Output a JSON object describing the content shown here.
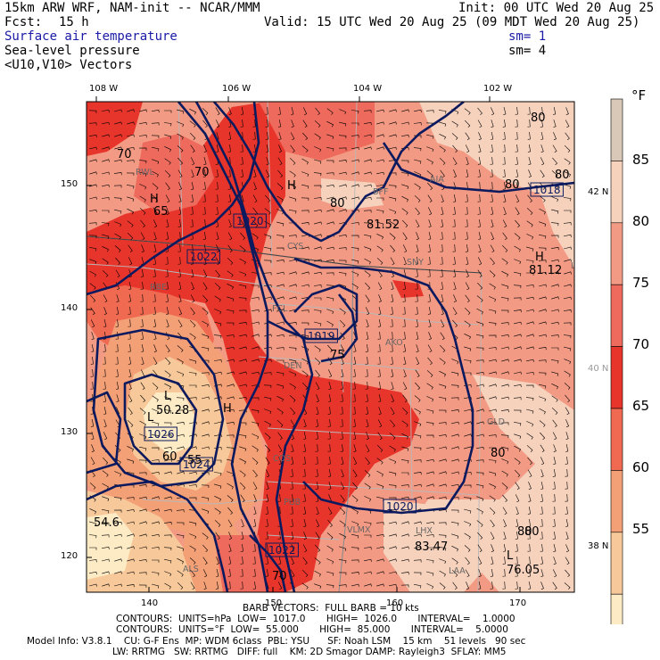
{
  "header": {
    "model_title": "15km ARW WRF, NAM-init -- NCAR/MMM",
    "init": "Init: 00 UTC Wed 20 Aug 25",
    "fcst_label": "Fcst:",
    "fcst_value": "15 h",
    "valid": "Valid: 15 UTC Wed 20 Aug 25 (09 MDT Wed 20 Aug 25)",
    "field1": "Surface air temperature",
    "field1_sm": "sm= 1",
    "field2": "Sea-level pressure",
    "field2_sm": "sm= 4",
    "field3": "<U10,V10> Vectors"
  },
  "axes": {
    "top_lon": [
      "108 W",
      "106 W",
      "104 W",
      "102 W"
    ],
    "bottom_x": [
      "140",
      "150",
      "160",
      "170"
    ],
    "left_y": [
      "150",
      "140",
      "130",
      "120"
    ],
    "right_lat": [
      "42 N",
      "40 N",
      "38 N"
    ]
  },
  "colorbar": {
    "unit": "°F",
    "labels": [
      "85",
      "80",
      "75",
      "70",
      "65",
      "60",
      "55"
    ],
    "colors": [
      "#d9c7b8",
      "#f6d2bd",
      "#f29a84",
      "#ee6a5c",
      "#e8352b",
      "#f06a52",
      "#f4a077",
      "#f7c99a",
      "#fdebc6"
    ]
  },
  "stations": [
    "RWL",
    "BFF",
    "AIA",
    "CYS",
    "SNY",
    "FCL",
    "DEN",
    "AKO",
    "LHX",
    "COS",
    "GLD",
    "PUB",
    "ALS",
    "LAA",
    "VLMX",
    "RBE",
    "LBE"
  ],
  "map_labels": {
    "temps": [
      "70",
      "70",
      "65",
      "80",
      "80",
      "80",
      "81.52",
      "81.12",
      "75",
      "80",
      "80",
      "55",
      "60",
      "54.6",
      "83.47",
      "76.05",
      "70",
      "50.28",
      "80",
      "80"
    ],
    "isobars": [
      "1020",
      "1022",
      "1019",
      "1018",
      "1026",
      "1024",
      "1020",
      "1022"
    ],
    "misc": [
      "H",
      "H",
      "H",
      "L",
      "L",
      "L",
      "H"
    ]
  },
  "footer": {
    "barb": "BARB VECTORS:  FULL BARB = 10 kts",
    "contours1": "CONTOURS:  UNITS=hPa  LOW=  1017.0       HIGH=  1026.0       INTERVAL=    1.0000",
    "contours2": "CONTOURS:  UNITS=°F  LOW=  55.000       HIGH=  85.000       INTERVAL=    5.0000",
    "model_info": "Model Info: V3.8.1    CU: G-F Ens  MP: WDM 6class  PBL: YSU      SF: Noah LSM    15 km    51 levels   90 sec",
    "model_info2": "LW: RRTMG   SW: RRTMG   DIFF: full    KM: 2D Smagor DAMP: Rayleigh3  SFLAY: MM5"
  }
}
